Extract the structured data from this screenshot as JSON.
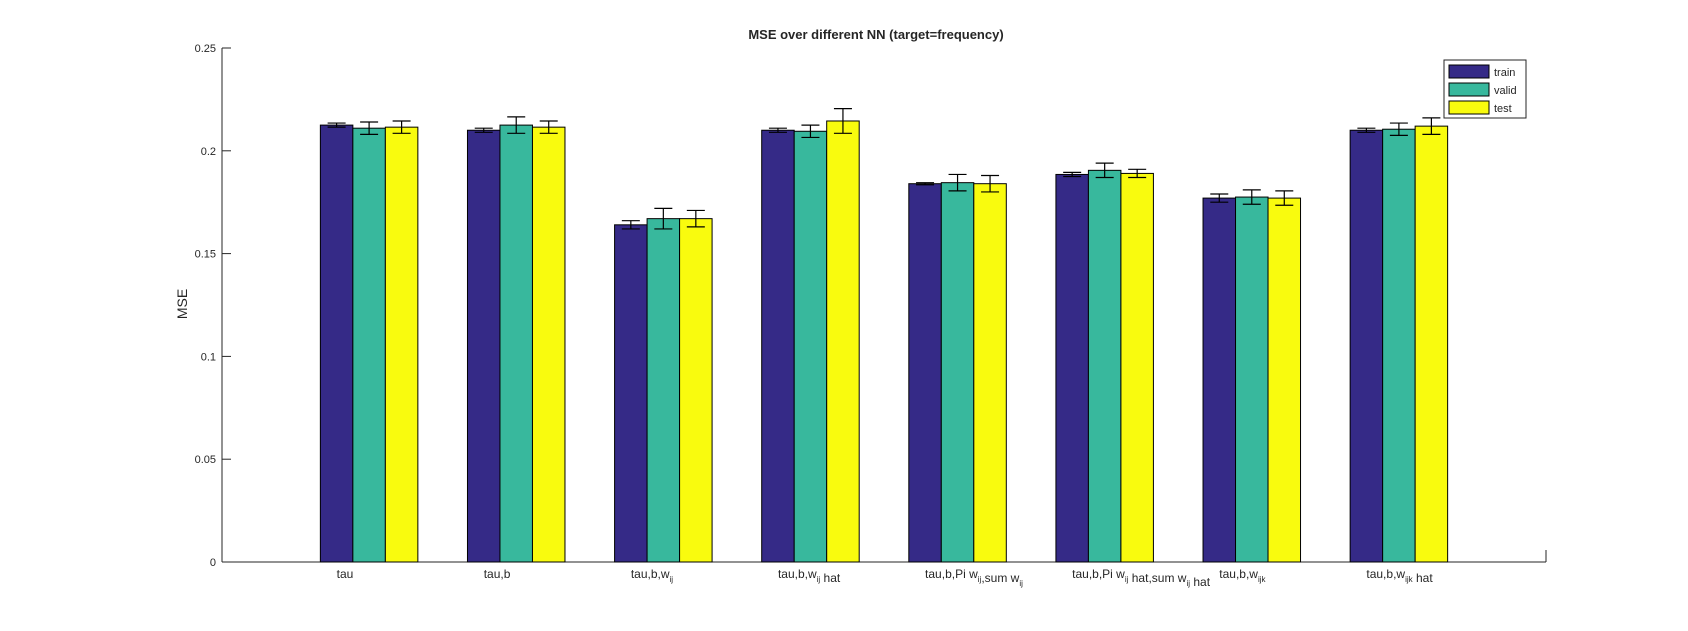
{
  "chart_data": {
    "type": "bar",
    "title": "MSE over different NN (target=frequency)",
    "xlabel": "",
    "ylabel": "MSE",
    "ylim": [
      0,
      0.25
    ],
    "yticks": [
      "0",
      "0.05",
      "0.1",
      "0.15",
      "0.2",
      "0.25"
    ],
    "yticks_values": [
      0,
      0.05,
      0.1,
      0.15,
      0.2,
      0.25
    ],
    "grid": false,
    "legend_position": "top-right",
    "categories": [
      {
        "base": "tau",
        "sub": "",
        "suffix": ""
      },
      {
        "base": "tau,b",
        "sub": "",
        "suffix": ""
      },
      {
        "base": "tau,b,w",
        "sub": "ij",
        "suffix": ""
      },
      {
        "base": "tau,b,w",
        "sub": "ij",
        "suffix": " hat"
      },
      {
        "base": "tau,b,Pi w",
        "sub": "ij",
        "suffix": ",sum w",
        "sub2": "ij"
      },
      {
        "base": "tau,b,Pi w",
        "sub": "ij",
        "suffix": " hat,sum w",
        "sub2": "ij",
        "suffix2": " hat"
      },
      {
        "base": "tau,b,w",
        "sub": "ijk",
        "suffix": ""
      },
      {
        "base": "tau,b,w",
        "sub": "ijk",
        "suffix": " hat"
      }
    ],
    "series": [
      {
        "name": "train",
        "color": "#352a87",
        "values": [
          0.2125,
          0.21,
          0.164,
          0.21,
          0.184,
          0.1885,
          0.177,
          0.21
        ],
        "errors": [
          0.001,
          0.001,
          0.002,
          0.001,
          0.0005,
          0.001,
          0.002,
          0.001
        ]
      },
      {
        "name": "valid",
        "color": "#38b89d",
        "values": [
          0.211,
          0.2125,
          0.167,
          0.2095,
          0.1845,
          0.1905,
          0.1775,
          0.2105
        ],
        "errors": [
          0.003,
          0.004,
          0.005,
          0.003,
          0.004,
          0.0035,
          0.0035,
          0.003
        ]
      },
      {
        "name": "test",
        "color": "#f9fb0e",
        "values": [
          0.2115,
          0.2115,
          0.167,
          0.2145,
          0.184,
          0.189,
          0.177,
          0.212
        ],
        "errors": [
          0.003,
          0.003,
          0.004,
          0.006,
          0.004,
          0.002,
          0.0035,
          0.004
        ]
      }
    ]
  }
}
